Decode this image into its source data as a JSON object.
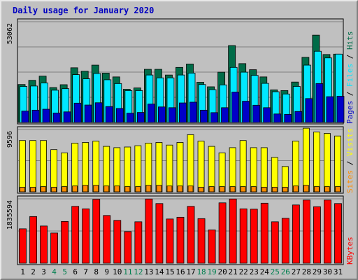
{
  "chart_data": {
    "type": "bar",
    "title": "Daily usage for January 2020",
    "categories": [
      "1",
      "2",
      "3",
      "4",
      "5",
      "6",
      "7",
      "8",
      "9",
      "10",
      "11",
      "12",
      "13",
      "14",
      "15",
      "16",
      "17",
      "18",
      "19",
      "20",
      "21",
      "22",
      "23",
      "24",
      "25",
      "26",
      "27",
      "28",
      "29",
      "30",
      "31"
    ],
    "weekend_days": [
      4,
      5,
      11,
      12,
      18,
      19,
      25,
      26
    ],
    "panels": [
      {
        "id": "hits-files-pages",
        "max_label": "53062",
        "ymax": 53062,
        "legend": [
          "Pages",
          "Files",
          "Hits"
        ],
        "series": [
          {
            "name": "Hits",
            "color": "#006c48",
            "values": [
              20000,
              22200,
              24400,
              18400,
              19900,
              28800,
              27000,
              30200,
              26000,
              24000,
              17500,
              18200,
              28000,
              28000,
              25000,
              29000,
              30800,
              21200,
              18800,
              26500,
              40500,
              31000,
              27800,
              24000,
              17200,
              16800,
              21300,
              34300,
              46000,
              35800,
              36000
            ]
          },
          {
            "name": "Files",
            "color": "#00e8ff",
            "values": [
              19000,
              19200,
              20800,
              17000,
              17800,
              25200,
              23000,
              25800,
              22500,
              20500,
              16800,
              16800,
              25000,
              23500,
              23500,
              25000,
              26000,
              20000,
              17300,
              19800,
              29000,
              26500,
              24800,
              20600,
              16200,
              15000,
              19000,
              30200,
              37500,
              34000,
              36000
            ]
          },
          {
            "name": "Pages",
            "color": "#0000c8",
            "values": [
              6000,
              6500,
              7000,
              5000,
              5600,
              10200,
              9200,
              10400,
              8400,
              7400,
              4900,
              5300,
              9700,
              8200,
              7800,
              10300,
              10700,
              6500,
              5200,
              7800,
              16000,
              11200,
              9100,
              7800,
              4500,
              4300,
              5800,
              12600,
              20500,
              13600,
              13800
            ]
          }
        ]
      },
      {
        "id": "visits-sites",
        "max_label": "9596",
        "ymax": 9596,
        "legend": [
          "Sites",
          "Visits"
        ],
        "series": [
          {
            "name": "Visits",
            "color": "#ffff00",
            "values": [
              7900,
              7900,
              7900,
              6500,
              6000,
              7500,
              7600,
              7800,
              7000,
              6800,
              6900,
              7100,
              7500,
              7600,
              7200,
              7600,
              8800,
              7800,
              7000,
              6000,
              6800,
              7900,
              6800,
              6800,
              5300,
              3900,
              7800,
              9800,
              9200,
              9000,
              8600
            ]
          },
          {
            "name": "Sites",
            "color": "#ff8c00",
            "values": [
              700,
              700,
              800,
              700,
              800,
              900,
              1000,
              1000,
              900,
              900,
              800,
              800,
              1000,
              1000,
              900,
              900,
              900,
              700,
              800,
              800,
              800,
              800,
              800,
              700,
              700,
              700,
              900,
              1000,
              800,
              800,
              800
            ]
          }
        ]
      },
      {
        "id": "kbytes",
        "max_label": "1835594",
        "ymax": 1835594,
        "legend": [
          "KBytes"
        ],
        "series": [
          {
            "name": "KBytes",
            "color": "#ff0000",
            "values": [
              980000,
              1330000,
              1060000,
              860000,
              1190000,
              1620000,
              1550000,
              1820000,
              1360000,
              1220000,
              900000,
              1180000,
              1830000,
              1700000,
              1260000,
              1310000,
              1620000,
              1270000,
              950000,
              1720000,
              1830000,
              1550000,
              1540000,
              1710000,
              1180000,
              1280000,
              1660000,
              1800000,
              1610000,
              1800000,
              1700000
            ]
          }
        ]
      }
    ]
  }
}
